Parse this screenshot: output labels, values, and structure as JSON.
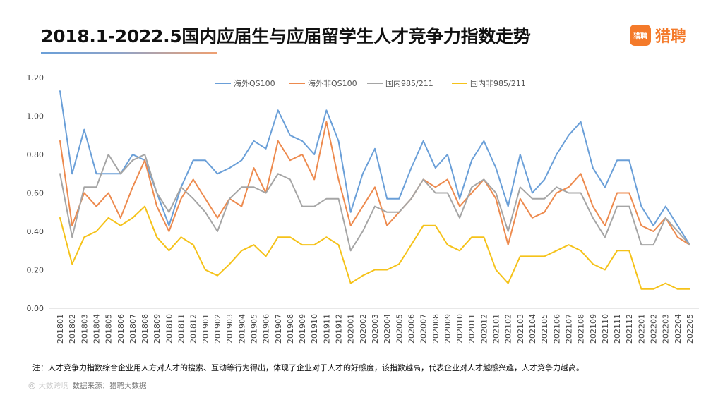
{
  "header": {
    "title": "2018.1-2022.5国内应届生与应届留学生人才竞争力指数走势",
    "brand": "猎聘",
    "brand_icon_text": "猎聘"
  },
  "footer": {
    "note": "注：人才竞争力指数综合企业用人方对人才的搜索、互动等行为得出，体现了企业对于人才的好感度，该指数越高，代表企业对人才越感兴趣，人才竞争力越高。",
    "source": "数据来源：猎聘大数据",
    "watermark": "大数跨境"
  },
  "chart_data": {
    "type": "line",
    "title": "2018.1-2022.5国内应届生与应届留学生人才竞争力指数走势",
    "xlabel": "",
    "ylabel": "",
    "ylim": [
      0,
      1.2
    ],
    "yticks": [
      "0.00",
      "0.20",
      "0.40",
      "0.60",
      "0.80",
      "1.00",
      "1.20"
    ],
    "legend_position": "top",
    "categories": [
      "201801",
      "201802",
      "201803",
      "201804",
      "201805",
      "201806",
      "201807",
      "201808",
      "201809",
      "201810",
      "201811",
      "201812",
      "201901",
      "201902",
      "201903",
      "201904",
      "201905",
      "201906",
      "201907",
      "201908",
      "201909",
      "201910",
      "201911",
      "201912",
      "202001",
      "202002",
      "202003",
      "202004",
      "202005",
      "202006",
      "202007",
      "202008",
      "202009",
      "202010",
      "202011",
      "202012",
      "202101",
      "202102",
      "202103",
      "202104",
      "202105",
      "202106",
      "202107",
      "202108",
      "202109",
      "202110",
      "202111",
      "202112",
      "202201",
      "202202",
      "202203",
      "202204",
      "202205"
    ],
    "series": [
      {
        "name": "海外QS100",
        "color": "#6a9fd8",
        "values": [
          1.13,
          0.7,
          0.93,
          0.7,
          0.7,
          0.7,
          0.8,
          0.77,
          0.6,
          0.43,
          0.63,
          0.77,
          0.77,
          0.7,
          0.73,
          0.77,
          0.87,
          0.83,
          1.03,
          0.9,
          0.87,
          0.8,
          1.03,
          0.87,
          0.5,
          0.7,
          0.83,
          0.57,
          0.57,
          0.73,
          0.87,
          0.73,
          0.8,
          0.57,
          0.77,
          0.87,
          0.73,
          0.53,
          0.8,
          0.6,
          0.67,
          0.8,
          0.9,
          0.97,
          0.73,
          0.63,
          0.77,
          0.77,
          0.53,
          0.43,
          0.53,
          0.43,
          0.33
        ]
      },
      {
        "name": "海外非QS100",
        "color": "#ed8a4e",
        "values": [
          0.87,
          0.43,
          0.6,
          0.53,
          0.6,
          0.47,
          0.63,
          0.77,
          0.53,
          0.4,
          0.57,
          0.67,
          0.57,
          0.47,
          0.57,
          0.53,
          0.73,
          0.6,
          0.87,
          0.77,
          0.8,
          0.67,
          0.97,
          0.67,
          0.43,
          0.53,
          0.63,
          0.43,
          0.5,
          0.57,
          0.67,
          0.63,
          0.67,
          0.53,
          0.6,
          0.67,
          0.57,
          0.33,
          0.57,
          0.47,
          0.5,
          0.6,
          0.63,
          0.7,
          0.53,
          0.43,
          0.6,
          0.6,
          0.43,
          0.4,
          0.47,
          0.37,
          0.33
        ]
      },
      {
        "name": "国内985/211",
        "color": "#a5a5a5",
        "values": [
          0.7,
          0.37,
          0.63,
          0.63,
          0.8,
          0.7,
          0.77,
          0.8,
          0.6,
          0.5,
          0.63,
          0.57,
          0.5,
          0.4,
          0.57,
          0.63,
          0.63,
          0.6,
          0.7,
          0.67,
          0.53,
          0.53,
          0.57,
          0.57,
          0.3,
          0.4,
          0.53,
          0.5,
          0.5,
          0.57,
          0.67,
          0.6,
          0.6,
          0.47,
          0.63,
          0.67,
          0.6,
          0.4,
          0.63,
          0.57,
          0.57,
          0.63,
          0.6,
          0.6,
          0.47,
          0.37,
          0.53,
          0.53,
          0.33,
          0.33,
          0.47,
          0.4,
          0.33
        ]
      },
      {
        "name": "国内非985/211",
        "color": "#f5c219",
        "values": [
          0.47,
          0.23,
          0.37,
          0.4,
          0.47,
          0.43,
          0.47,
          0.53,
          0.37,
          0.3,
          0.37,
          0.33,
          0.2,
          0.17,
          0.23,
          0.3,
          0.33,
          0.27,
          0.37,
          0.37,
          0.33,
          0.33,
          0.37,
          0.33,
          0.13,
          0.17,
          0.2,
          0.2,
          0.23,
          0.33,
          0.43,
          0.43,
          0.33,
          0.3,
          0.37,
          0.37,
          0.2,
          0.13,
          0.27,
          0.27,
          0.27,
          0.3,
          0.33,
          0.3,
          0.23,
          0.2,
          0.3,
          0.3,
          0.1,
          0.1,
          0.13,
          0.1,
          0.1
        ]
      }
    ]
  }
}
